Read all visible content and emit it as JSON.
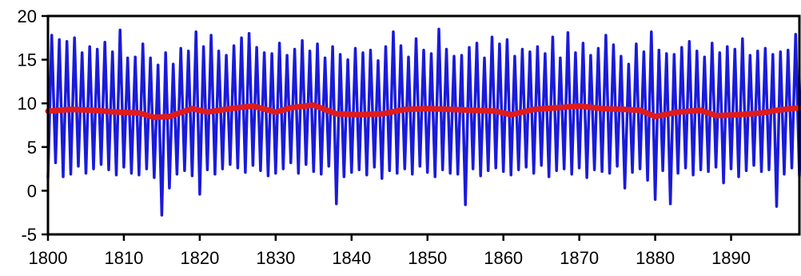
{
  "chart_data": {
    "type": "line",
    "title": "",
    "xlabel": "",
    "ylabel": "",
    "xlim": [
      1800,
      1899
    ],
    "ylim": [
      -5,
      20
    ],
    "x_ticks": [
      1800,
      1810,
      1820,
      1830,
      1840,
      1850,
      1860,
      1870,
      1880,
      1890
    ],
    "x_tick_labels": [
      "1800",
      "1810",
      "1820",
      "1830",
      "1840",
      "1850",
      "1860",
      "1870",
      "1880",
      "1890"
    ],
    "y_ticks": [
      -5,
      0,
      5,
      10,
      15,
      20
    ],
    "y_tick_labels": [
      "-5",
      "0",
      "5",
      "10",
      "15",
      "20"
    ],
    "grid": false,
    "legend": "none",
    "series": [
      {
        "color": "#1a1adb",
        "style": "line",
        "points_per_year": 2,
        "x_start": 1800,
        "values": [
          1.5,
          17.8,
          3.2,
          17.3,
          1.6,
          17.1,
          1.9,
          17.5,
          2.8,
          15.8,
          2.0,
          16.5,
          2.5,
          16.2,
          3.0,
          17.0,
          2.4,
          15.9,
          1.8,
          18.4,
          2.7,
          15.2,
          2.0,
          15.3,
          1.8,
          16.8,
          2.5,
          15.2,
          1.5,
          14.4,
          -2.8,
          15.8,
          0.3,
          14.5,
          1.9,
          16.3,
          2.3,
          16.0,
          1.7,
          18.2,
          -0.4,
          16.5,
          2.4,
          17.8,
          1.9,
          16.0,
          2.5,
          15.5,
          3.0,
          16.6,
          2.6,
          17.5,
          2.1,
          18.0,
          2.9,
          16.4,
          2.3,
          15.8,
          1.7,
          15.7,
          2.0,
          16.9,
          2.5,
          15.5,
          3.2,
          16.2,
          2.0,
          17.2,
          3.0,
          16.0,
          2.2,
          16.8,
          1.9,
          15.2,
          2.8,
          16.5,
          -1.5,
          15.6,
          1.6,
          15.0,
          2.1,
          16.3,
          2.4,
          15.8,
          1.8,
          16.1,
          2.7,
          14.9,
          1.4,
          16.5,
          2.3,
          18.2,
          2.0,
          16.6,
          2.5,
          15.3,
          1.9,
          17.4,
          2.8,
          16.1,
          2.1,
          15.7,
          1.6,
          18.5,
          2.4,
          16.2,
          2.0,
          15.4,
          1.9,
          15.5,
          -1.6,
          16.4,
          2.5,
          16.9,
          1.7,
          15.2,
          2.3,
          17.6,
          2.6,
          16.8,
          2.2,
          17.3,
          1.8,
          15.4,
          2.4,
          16.2,
          2.7,
          15.9,
          2.0,
          16.5,
          2.9,
          15.7,
          1.6,
          17.6,
          2.3,
          15.2,
          2.5,
          18.1,
          1.9,
          15.8,
          2.6,
          16.9,
          1.5,
          15.5,
          2.4,
          16.3,
          2.2,
          17.8,
          2.0,
          16.7,
          2.8,
          15.4,
          0.3,
          14.5,
          2.1,
          16.8,
          2.5,
          15.9,
          1.2,
          18.2,
          -1.0,
          16.1,
          2.3,
          15.7,
          -1.5,
          15.6,
          2.0,
          16.4,
          2.6,
          17.1,
          1.8,
          16.0,
          2.4,
          15.3,
          2.2,
          16.9,
          2.7,
          15.8,
          0.9,
          16.5,
          2.5,
          16.2,
          1.6,
          17.4,
          2.3,
          15.5,
          2.9,
          16.0,
          2.2,
          16.3,
          2.4,
          15.6,
          -1.8,
          15.9,
          1.9,
          16.1,
          2.6,
          17.9,
          1.7,
          15.8
        ]
      },
      {
        "color": "#e01b1b",
        "style": "line",
        "x": [
          1800,
          1803,
          1806,
          1809,
          1812,
          1814,
          1816,
          1819,
          1821,
          1824,
          1827,
          1830,
          1832,
          1835,
          1838,
          1841,
          1844,
          1847,
          1850,
          1853,
          1856,
          1859,
          1861,
          1864,
          1867,
          1870,
          1873,
          1876,
          1878,
          1880,
          1883,
          1886,
          1888,
          1891,
          1894,
          1896,
          1899
        ],
        "values": [
          9.1,
          9.3,
          9.2,
          9.0,
          8.9,
          8.4,
          8.5,
          9.4,
          9.0,
          9.4,
          9.7,
          9.0,
          9.5,
          9.8,
          8.8,
          8.7,
          8.8,
          9.3,
          9.4,
          9.3,
          9.2,
          9.1,
          8.7,
          9.3,
          9.5,
          9.7,
          9.4,
          9.3,
          9.2,
          8.5,
          9.0,
          9.2,
          8.6,
          8.7,
          8.9,
          9.2,
          9.5
        ]
      }
    ]
  }
}
